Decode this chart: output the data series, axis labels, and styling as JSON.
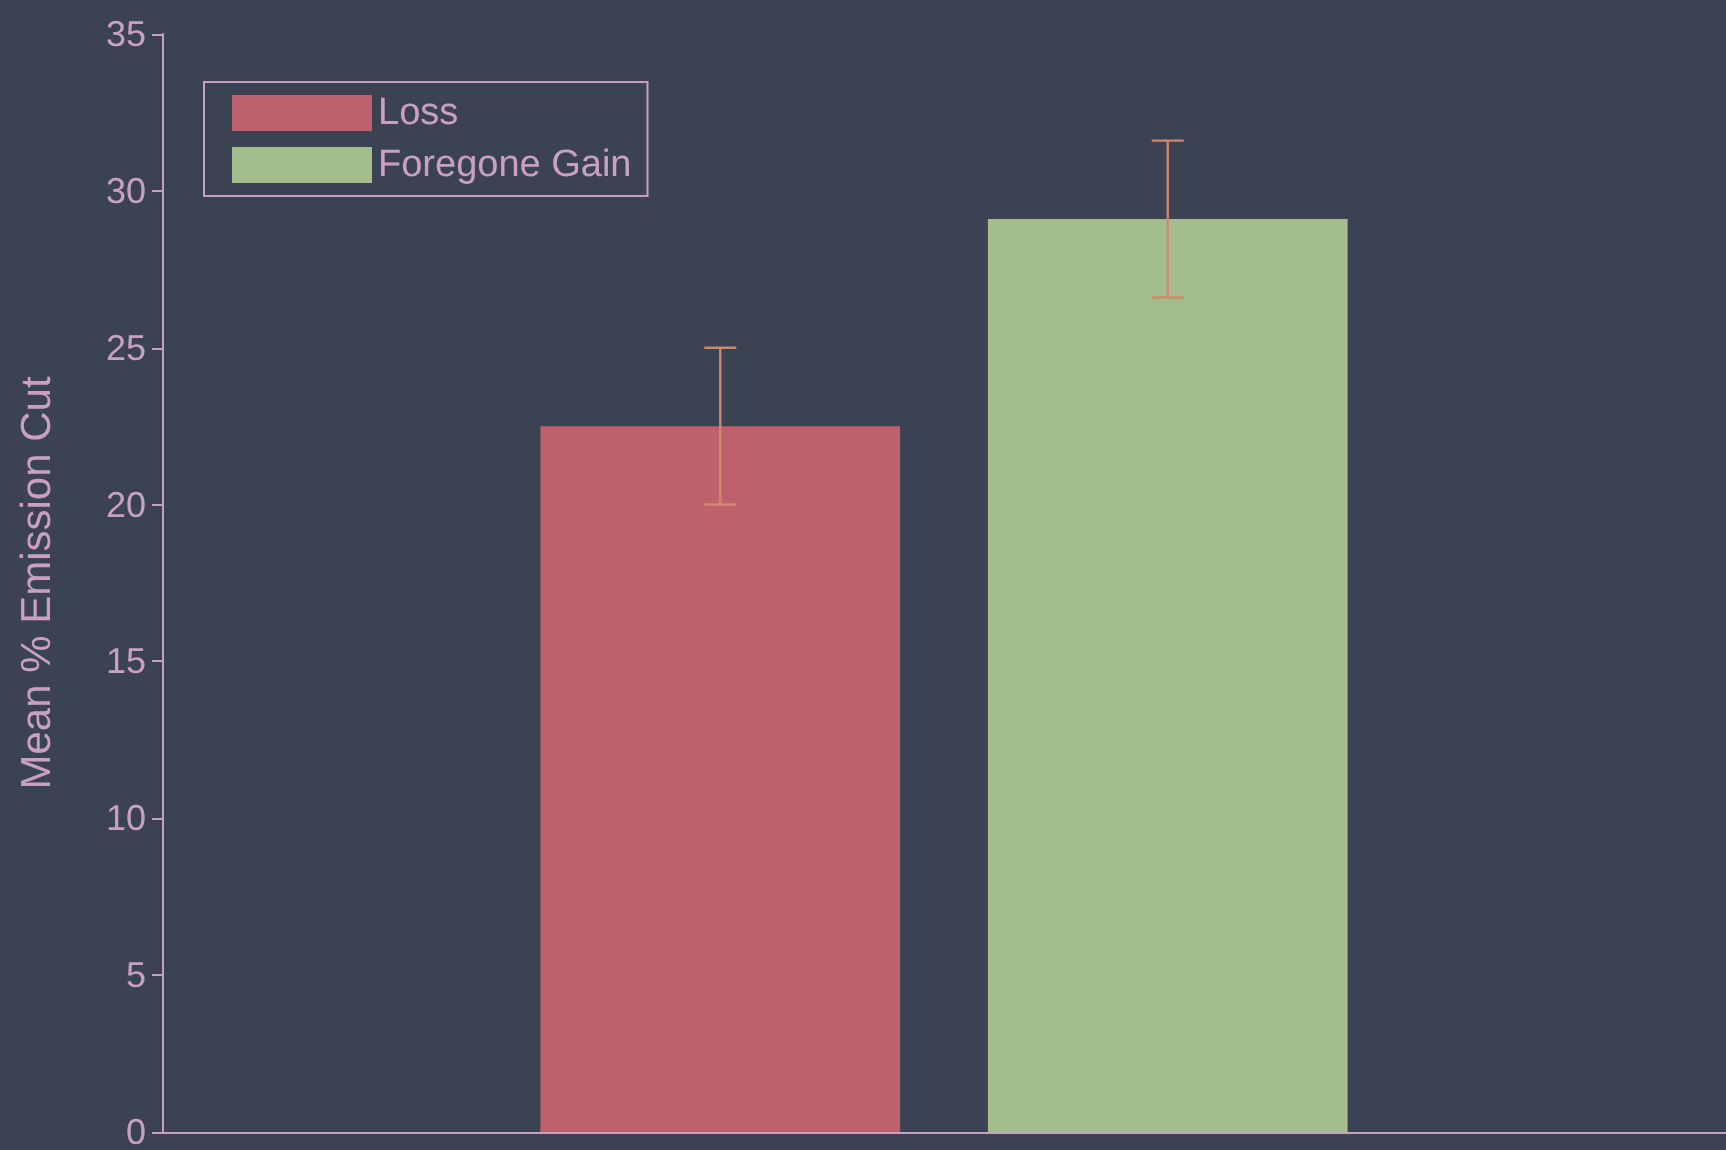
{
  "chart_data": {
    "type": "bar",
    "ylabel": "Mean % Emission Cut",
    "categories": [
      null
    ],
    "series": [
      {
        "name": "Loss",
        "color": "#bf616a",
        "values": [
          22.5
        ],
        "errors": [
          2.5
        ]
      },
      {
        "name": "Foregone Gain",
        "color": "#a3be8c",
        "values": [
          29.1
        ],
        "errors": [
          2.5
        ]
      }
    ],
    "ylim": [
      0,
      35
    ],
    "yticks": [
      0,
      5,
      10,
      15,
      20,
      25,
      30,
      35
    ],
    "grid": false,
    "legend": "top left"
  }
}
